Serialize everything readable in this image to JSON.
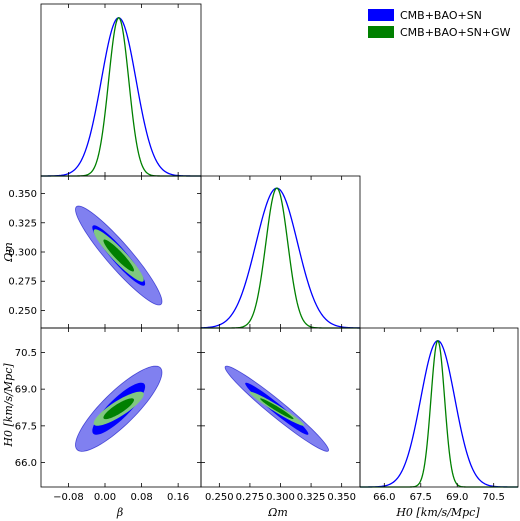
{
  "chart_data": {
    "type": "triangle-contour",
    "parameters": [
      {
        "id": "beta",
        "label": "β",
        "range": [
          -0.14,
          0.21
        ],
        "ticks": [
          -0.08,
          0.0,
          0.08,
          0.16
        ],
        "tick_labels": [
          "−0.08",
          "0.00",
          "0.08",
          "0.16"
        ]
      },
      {
        "id": "omega_m",
        "label": "Ωm",
        "range": [
          0.235,
          0.365
        ],
        "ticks": [
          0.25,
          0.275,
          0.3,
          0.325,
          0.35
        ],
        "tick_labels": [
          "0.250",
          "0.275",
          "0.300",
          "0.325",
          "0.350"
        ]
      },
      {
        "id": "H0",
        "label": "H0 [km/s/Mpc]",
        "range": [
          65.0,
          71.5
        ],
        "ticks": [
          66.0,
          67.5,
          69.0,
          70.5
        ],
        "tick_labels": [
          "66.0",
          "67.5",
          "69.0",
          "70.5"
        ]
      }
    ],
    "y_tick_labels": {
      "omega_m": [
        "0.250",
        "0.275",
        "0.300",
        "0.325",
        "0.350"
      ],
      "H0": [
        "66.0",
        "67.5",
        "69.0",
        "70.5"
      ]
    },
    "legend": {
      "placement": "top-right"
    },
    "series": [
      {
        "name": "CMB+BAO+SN",
        "color_1sigma": "#0000ff",
        "color_2sigma": "#8080f0",
        "mean": {
          "beta": 0.03,
          "omega_m": 0.297,
          "H0": 68.2
        },
        "sigma": {
          "beta": 0.038,
          "omega_m": 0.017,
          "H0": 0.7
        },
        "correlation": {
          "beta_omega_m": -0.93,
          "beta_H0": 0.85,
          "omega_m_H0": -0.97
        }
      },
      {
        "name": "CMB+BAO+SN+GW",
        "color_1sigma": "#008000",
        "color_2sigma": "#80c880",
        "mean": {
          "beta": 0.03,
          "omega_m": 0.297,
          "H0": 68.2
        },
        "sigma": {
          "beta": 0.022,
          "omega_m": 0.009,
          "H0": 0.28
        },
        "correlation": {
          "beta_omega_m": -0.93,
          "beta_H0": 0.85,
          "omega_m_H0": -0.97
        }
      }
    ]
  }
}
